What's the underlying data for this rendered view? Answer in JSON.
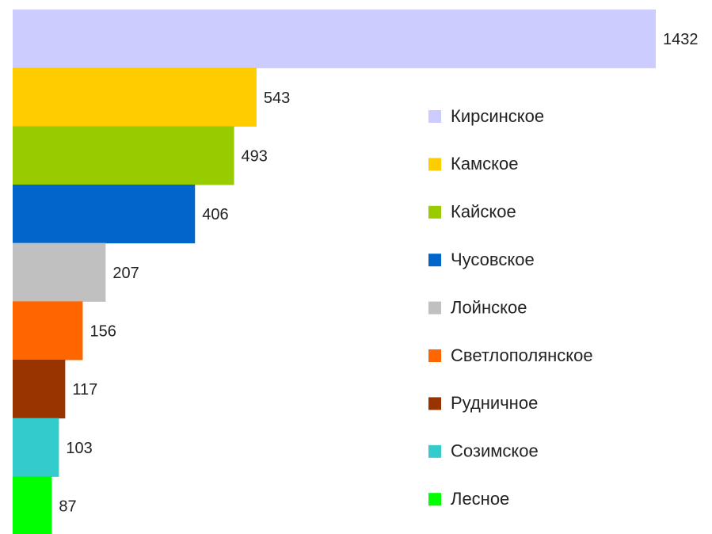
{
  "chart_data": {
    "type": "bar",
    "orientation": "horizontal",
    "categories": [
      "Кирсинское",
      "Камское",
      "Кайское",
      "Чусовское",
      "Лойнское",
      "Светлополянское",
      "Рудничное",
      "Созимское",
      "Лесное"
    ],
    "values": [
      1432,
      543,
      493,
      406,
      207,
      156,
      117,
      103,
      87
    ],
    "colors": [
      "#ccccff",
      "#ffcc00",
      "#99cc00",
      "#0066cc",
      "#c0c0c0",
      "#ff6600",
      "#993300",
      "#33cccc",
      "#00ff00"
    ],
    "xlim": [
      0,
      1432
    ],
    "legend": "right"
  }
}
